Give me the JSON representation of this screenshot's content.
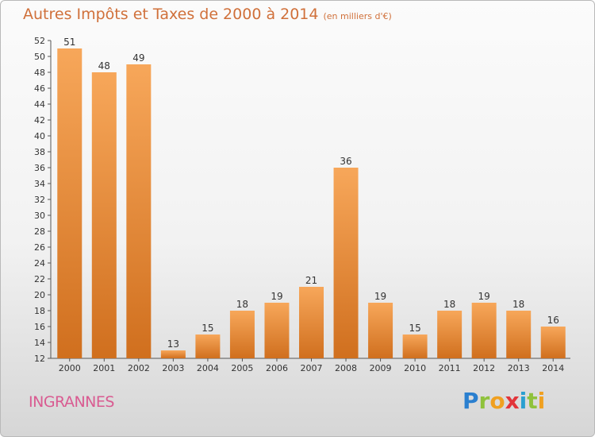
{
  "title": {
    "main": "Autres Impôts et Taxes de 2000 à 2014",
    "unit": "(en milliers d'€)"
  },
  "commune": "INGRANNES",
  "logo": {
    "letters": [
      {
        "ch": "P",
        "color": "#2a7fcf"
      },
      {
        "ch": "r",
        "color": "#8fc23c"
      },
      {
        "ch": "o",
        "color": "#f0a020"
      },
      {
        "ch": "x",
        "color": "#e2343a"
      },
      {
        "ch": "i",
        "color": "#2a9fd0"
      },
      {
        "ch": "t",
        "color": "#8fc23c"
      },
      {
        "ch": "i",
        "color": "#f0a020"
      }
    ]
  },
  "chart_data": {
    "type": "bar",
    "categories": [
      "2000",
      "2001",
      "2002",
      "2003",
      "2004",
      "2005",
      "2006",
      "2007",
      "2008",
      "2009",
      "2010",
      "2011",
      "2012",
      "2013",
      "2014"
    ],
    "values": [
      51,
      48,
      49,
      13,
      15,
      18,
      19,
      21,
      36,
      19,
      15,
      18,
      19,
      18,
      16
    ],
    "ylim": [
      12,
      52
    ],
    "yticks": [
      12,
      14,
      16,
      18,
      20,
      22,
      24,
      26,
      28,
      30,
      32,
      34,
      36,
      38,
      40,
      42,
      44,
      46,
      48,
      50,
      52
    ],
    "grid": false,
    "bar_color_top": "#f7a75a",
    "bar_color_bottom": "#d06f1e"
  }
}
